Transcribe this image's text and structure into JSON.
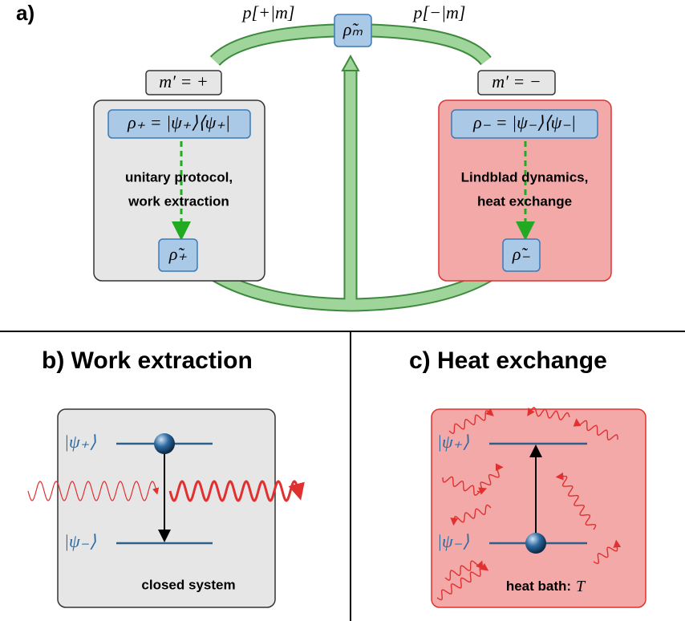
{
  "panel_a": {
    "label": "a)",
    "prob_plus": "p[+|m]",
    "prob_minus": "p[−|m]",
    "rho_m": "ρ̃ₘ",
    "left": {
      "outcome": "m′ = +",
      "state": "ρ₊ = |ψ₊⟩⟨ψ₊|",
      "process": [
        "unitary protocol,",
        "work extraction"
      ],
      "final": "ρ̃₊"
    },
    "right": {
      "outcome": "m′ = −",
      "state": "ρ₋ = |ψ₋⟩⟨ψ₋|",
      "process": [
        "Lindblad dynamics,",
        "heat exchange"
      ],
      "final": "ρ̃₋"
    }
  },
  "panel_b": {
    "title": "b) Work extraction",
    "upper": "|ψ₊⟩",
    "lower": "|ψ₋⟩",
    "caption": "closed system"
  },
  "panel_c": {
    "title": "c) Heat exchange",
    "upper": "|ψ₊⟩",
    "lower": "|ψ₋⟩",
    "caption": "heat bath:",
    "variable": "T"
  }
}
